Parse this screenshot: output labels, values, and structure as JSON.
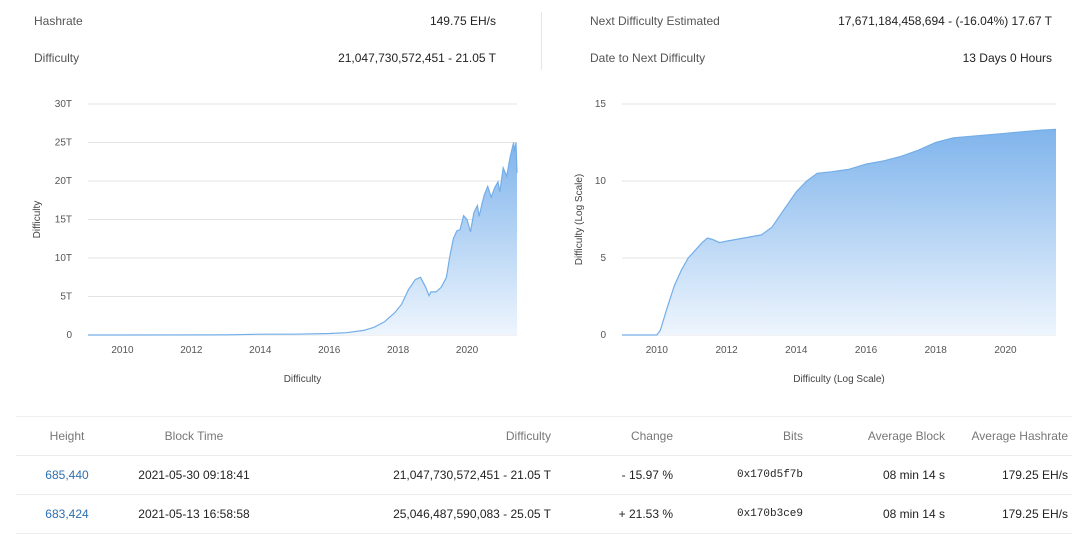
{
  "stats": {
    "hashrate_label": "Hashrate",
    "hashrate_value": "149.75 EH/s",
    "difficulty_label": "Difficulty",
    "difficulty_value": "21,047,730,572,451 - 21.05 T",
    "next_label": "Next Difficulty Estimated",
    "next_value": "17,671,184,458,694 - (-16.04%) 17.67 T",
    "date_label": "Date to Next Difficulty",
    "date_value": "13 Days 0 Hours"
  },
  "colors": {
    "area_top": "#7fb4ec",
    "area_bottom": "#eef5fd",
    "line": "#74aee8",
    "grid": "#e3e3e3"
  },
  "chart_data": [
    {
      "type": "area",
      "title": "",
      "xlabel": "Difficulty",
      "ylabel": "Difficulty",
      "xlim": [
        2009.0,
        2021.45
      ],
      "ylim": [
        0,
        30
      ],
      "x_ticks": [
        2010,
        2012,
        2014,
        2016,
        2018,
        2020
      ],
      "x_tick_labels": [
        "2010",
        "2012",
        "2014",
        "2016",
        "2018",
        "2020"
      ],
      "y_ticks": [
        0,
        5,
        10,
        15,
        20,
        25,
        30
      ],
      "y_tick_labels": [
        "0",
        "5T",
        "10T",
        "15T",
        "20T",
        "25T",
        "30T"
      ],
      "grid": true,
      "series": [
        {
          "x": [
            2009.0,
            2013.0,
            2014.0,
            2015.0,
            2016.0,
            2016.5,
            2017.0,
            2017.3,
            2017.6,
            2017.9,
            2018.1,
            2018.3,
            2018.5,
            2018.65,
            2018.8,
            2018.9,
            2018.95,
            2019.1,
            2019.25,
            2019.4,
            2019.5,
            2019.6,
            2019.7,
            2019.8,
            2019.9,
            2020.0,
            2020.1,
            2020.2,
            2020.3,
            2020.35,
            2020.45,
            2020.5,
            2020.6,
            2020.7,
            2020.8,
            2020.9,
            2020.95,
            2021.05,
            2021.15,
            2021.25,
            2021.35,
            2021.38,
            2021.42,
            2021.45
          ],
          "y": [
            0,
            0.01,
            0.1,
            0.1,
            0.2,
            0.3,
            0.6,
            1.0,
            1.7,
            2.9,
            4.0,
            5.9,
            7.2,
            7.5,
            6.2,
            5.1,
            5.6,
            5.6,
            6.2,
            7.5,
            10.2,
            12.5,
            13.5,
            13.7,
            15.5,
            15.0,
            13.4,
            15.9,
            16.8,
            15.4,
            17.3,
            18.2,
            19.3,
            17.9,
            19.1,
            19.9,
            18.6,
            21.7,
            20.6,
            23.1,
            25.0,
            23.8,
            25.0,
            21.05
          ]
        }
      ]
    },
    {
      "type": "area",
      "title": "",
      "xlabel": "Difficulty (Log Scale)",
      "ylabel": "Difficulty (Log Scale)",
      "xlim": [
        2009.0,
        2021.45
      ],
      "ylim": [
        0,
        15
      ],
      "x_ticks": [
        2010,
        2012,
        2014,
        2016,
        2018,
        2020
      ],
      "x_tick_labels": [
        "2010",
        "2012",
        "2014",
        "2016",
        "2018",
        "2020"
      ],
      "y_ticks": [
        0,
        5,
        10,
        15
      ],
      "y_tick_labels": [
        "0",
        "5",
        "10",
        "15"
      ],
      "grid": true,
      "series": [
        {
          "x": [
            2009.0,
            2010.0,
            2010.1,
            2010.3,
            2010.5,
            2010.7,
            2010.9,
            2011.1,
            2011.3,
            2011.45,
            2011.6,
            2011.8,
            2012.0,
            2012.5,
            2013.0,
            2013.3,
            2013.6,
            2014.0,
            2014.3,
            2014.6,
            2015.0,
            2015.5,
            2016.0,
            2016.5,
            2017.0,
            2017.5,
            2018.0,
            2018.5,
            2019.0,
            2019.5,
            2020.0,
            2020.5,
            2021.0,
            2021.45
          ],
          "y": [
            0,
            0,
            0.3,
            1.8,
            3.2,
            4.2,
            5.0,
            5.5,
            6.0,
            6.3,
            6.2,
            6.0,
            6.1,
            6.3,
            6.5,
            7.0,
            8.0,
            9.3,
            10.0,
            10.5,
            10.6,
            10.75,
            11.1,
            11.3,
            11.6,
            12.0,
            12.5,
            12.8,
            12.9,
            13.0,
            13.1,
            13.2,
            13.3,
            13.35
          ]
        }
      ]
    }
  ],
  "table": {
    "headers": [
      "Height",
      "Block Time",
      "Difficulty",
      "Change",
      "Bits",
      "Average Block",
      "Average Hashrate"
    ],
    "rows": [
      {
        "height": "685,440",
        "time": "2021-05-30 09:18:41",
        "difficulty": "21,047,730,572,451 - 21.05 T",
        "change": "- 15.97 %",
        "change_dir": "neg",
        "bits": "0x170d5f7b",
        "avg_block": "08 min 14 s",
        "avg_hash": "179.25 EH/s"
      },
      {
        "height": "683,424",
        "time": "2021-05-13 16:58:58",
        "difficulty": "25,046,487,590,083 - 25.05 T",
        "change": "+ 21.53 %",
        "change_dir": "pos",
        "bits": "0x170b3ce9",
        "avg_block": "08 min 14 s",
        "avg_hash": "179.25 EH/s"
      }
    ]
  }
}
